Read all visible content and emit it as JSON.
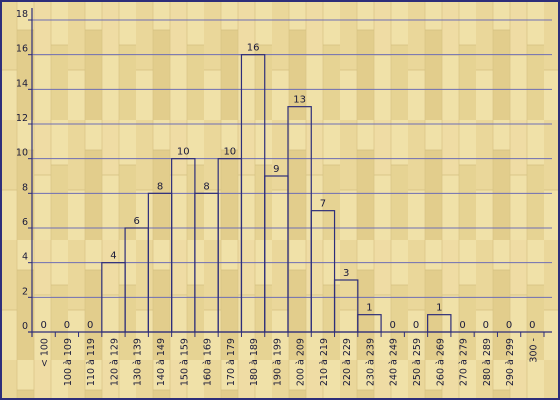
{
  "chart_data": {
    "type": "bar",
    "title": "",
    "xlabel": "",
    "ylabel": "",
    "ylim": [
      0,
      18
    ],
    "yticks": [
      0,
      2,
      4,
      6,
      8,
      10,
      12,
      14,
      16,
      18
    ],
    "grid": true,
    "categories": [
      "< 100",
      "100 à 109",
      "110 à 119",
      "120 à 129",
      "130 à 139",
      "140 à 149",
      "150 à 159",
      "160 à 169",
      "170 à 179",
      "180 à 189",
      "190 à 199",
      "200 à 209",
      "210 à 219",
      "220 à 229",
      "230 à 239",
      "240 à 249",
      "250 à 259",
      "260 à 269",
      "270 à 279",
      "280 à 289",
      "290 à 299",
      "300 -"
    ],
    "values": [
      0,
      0,
      0,
      4,
      6,
      8,
      10,
      8,
      10,
      16,
      9,
      13,
      7,
      3,
      1,
      0,
      0,
      1,
      0,
      0,
      0,
      0
    ],
    "colors": {
      "background_light": "#f0e1a8",
      "background_dark": "#dcc88a",
      "axis": "#2e2e7a",
      "grid": "#6e6eb4",
      "bar_stroke": "#2e2e7a",
      "frame": "#2e2e7a"
    }
  }
}
